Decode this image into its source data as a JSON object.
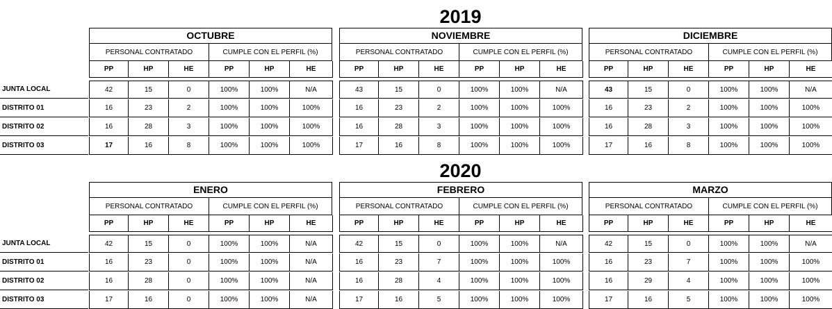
{
  "groups": {
    "contratado": "PERSONAL CONTRATADO",
    "cumple": "CUMPLE CON EL PERFIL (%)"
  },
  "sub": [
    "PP",
    "HP",
    "HE",
    "PP",
    "HP",
    "HE"
  ],
  "rows": [
    "JUNTA LOCAL",
    "DISTRITO 01",
    "DISTRITO 02",
    "DISTRITO 03"
  ],
  "sections": [
    {
      "year": "2019",
      "months": [
        {
          "name": "OCTUBRE",
          "cells": [
            [
              "42",
              "15",
              "0",
              "100%",
              "100%",
              "N/A"
            ],
            [
              "16",
              "23",
              "2",
              "100%",
              "100%",
              "100%"
            ],
            [
              "16",
              "28",
              "3",
              "100%",
              "100%",
              "100%"
            ],
            [
              "17",
              "16",
              "8",
              "100%",
              "100%",
              "100%"
            ]
          ]
        },
        {
          "name": "NOVIEMBRE",
          "cells": [
            [
              "43",
              "15",
              "0",
              "100%",
              "100%",
              "N/A"
            ],
            [
              "16",
              "23",
              "2",
              "100%",
              "100%",
              "100%"
            ],
            [
              "16",
              "28",
              "3",
              "100%",
              "100%",
              "100%"
            ],
            [
              "17",
              "16",
              "8",
              "100%",
              "100%",
              "100%"
            ]
          ]
        },
        {
          "name": "DICIEMBRE",
          "cells": [
            [
              "43",
              "15",
              "0",
              "100%",
              "100%",
              "N/A"
            ],
            [
              "16",
              "23",
              "2",
              "100%",
              "100%",
              "100%"
            ],
            [
              "16",
              "28",
              "3",
              "100%",
              "100%",
              "100%"
            ],
            [
              "17",
              "16",
              "8",
              "100%",
              "100%",
              "100%"
            ]
          ]
        }
      ]
    },
    {
      "year": "2020",
      "months": [
        {
          "name": "ENERO",
          "cells": [
            [
              "42",
              "15",
              "0",
              "100%",
              "100%",
              "N/A"
            ],
            [
              "16",
              "23",
              "0",
              "100%",
              "100%",
              "N/A"
            ],
            [
              "16",
              "28",
              "0",
              "100%",
              "100%",
              "N/A"
            ],
            [
              "17",
              "16",
              "0",
              "100%",
              "100%",
              "N/A"
            ]
          ]
        },
        {
          "name": "FEBRERO",
          "cells": [
            [
              "42",
              "15",
              "0",
              "100%",
              "100%",
              "N/A"
            ],
            [
              "16",
              "23",
              "7",
              "100%",
              "100%",
              "100%"
            ],
            [
              "16",
              "28",
              "4",
              "100%",
              "100%",
              "100%"
            ],
            [
              "17",
              "16",
              "5",
              "100%",
              "100%",
              "100%"
            ]
          ]
        },
        {
          "name": "MARZO",
          "cells": [
            [
              "42",
              "15",
              "0",
              "100%",
              "100%",
              "N/A"
            ],
            [
              "16",
              "23",
              "7",
              "100%",
              "100%",
              "100%"
            ],
            [
              "16",
              "29",
              "4",
              "100%",
              "100%",
              "100%"
            ],
            [
              "17",
              "16",
              "5",
              "100%",
              "100%",
              "100%"
            ]
          ]
        }
      ]
    }
  ]
}
